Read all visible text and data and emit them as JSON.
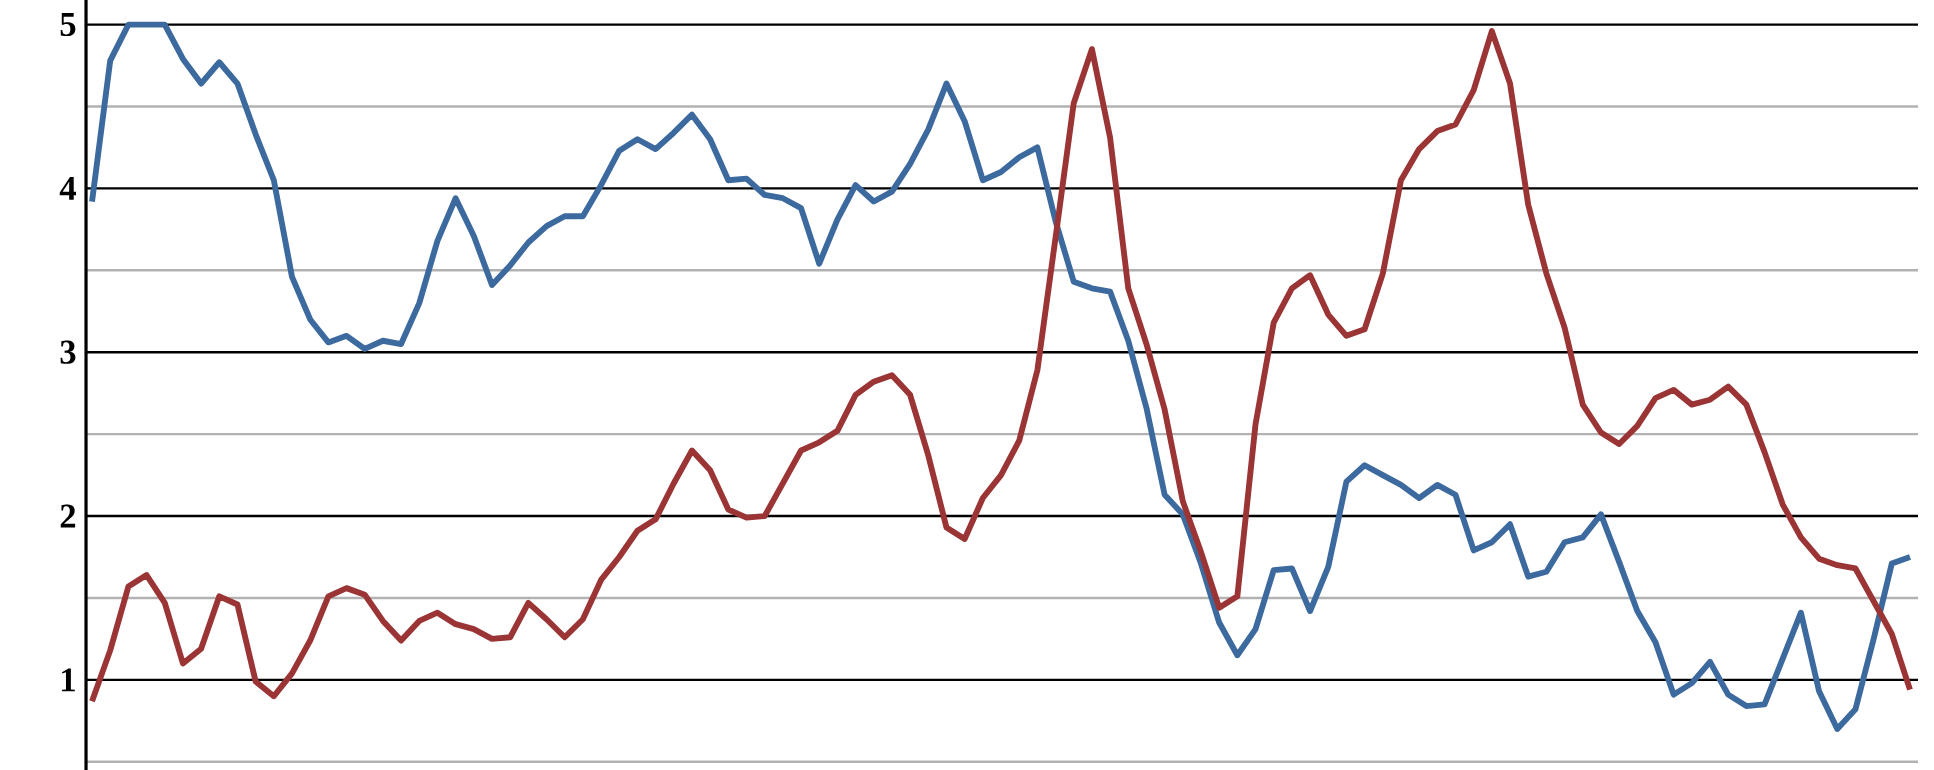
{
  "chart_data": {
    "type": "line",
    "ylim": [
      0.45,
      5.15
    ],
    "categories": [
      null,
      null,
      null,
      null,
      null,
      null,
      null,
      null,
      null,
      null,
      null,
      null,
      null,
      null,
      null,
      null,
      null,
      null,
      null,
      null,
      null,
      null,
      null,
      null,
      null,
      null,
      null,
      null,
      null,
      null,
      null,
      null,
      null,
      null,
      null,
      null,
      null,
      null,
      null,
      null,
      null,
      null,
      null,
      null,
      null,
      null,
      null,
      null,
      null,
      null,
      null,
      null,
      null,
      null,
      null,
      null,
      null,
      null,
      null,
      null,
      null,
      null,
      null,
      null,
      null,
      null,
      null,
      null,
      null,
      null,
      null,
      null,
      null,
      null,
      null,
      null,
      null,
      null,
      null,
      null,
      null,
      null,
      null,
      null,
      null,
      null,
      null,
      null,
      null,
      null,
      null,
      null,
      null,
      null,
      null,
      null,
      null,
      null,
      null,
      null,
      null
    ],
    "yticks": [
      {
        "value": 0.5,
        "label": null
      },
      1,
      {
        "value": 1.5,
        "label": null
      },
      2,
      {
        "value": 2.5,
        "label": null
      },
      3,
      {
        "value": 3.5,
        "label": null
      },
      4,
      {
        "value": 4.5,
        "label": null
      },
      5
    ],
    "tick_labels": "y",
    "grid": "y",
    "marker": "none",
    "line_style": "solid",
    "series": [
      {
        "color": "#3d6a9e",
        "values": [
          3.92,
          4.78,
          5.0,
          5.0,
          5.0,
          4.79,
          4.64,
          4.77,
          4.64,
          4.33,
          4.05,
          3.46,
          3.2,
          3.06,
          3.1,
          3.02,
          3.07,
          3.05,
          3.3,
          3.68,
          3.94,
          3.71,
          3.41,
          3.53,
          3.67,
          3.77,
          3.83,
          3.83,
          4.02,
          4.23,
          4.3,
          4.24,
          4.34,
          4.45,
          4.3,
          4.05,
          4.06,
          3.96,
          3.94,
          3.88,
          3.54,
          3.81,
          4.02,
          3.92,
          3.98,
          4.15,
          4.36,
          4.64,
          4.41,
          4.05,
          4.1,
          4.19,
          4.25,
          3.8,
          3.43,
          3.39,
          3.37,
          3.07,
          2.66,
          2.13,
          2.01,
          1.71,
          1.35,
          1.15,
          1.31,
          1.67,
          1.68,
          1.42,
          1.69,
          2.21,
          2.31,
          2.25,
          2.19,
          2.11,
          2.19,
          2.13,
          1.79,
          1.84,
          1.95,
          1.63,
          1.66,
          1.84,
          1.87,
          2.01,
          1.72,
          1.42,
          1.23,
          0.91,
          0.98,
          1.11,
          0.91,
          0.84,
          0.85,
          1.13,
          1.41,
          0.93,
          0.7,
          0.82,
          1.25,
          1.71,
          1.75
        ]
      },
      {
        "color": "#9b3535",
        "values": [
          0.87,
          1.18,
          1.57,
          1.64,
          1.47,
          1.1,
          1.19,
          1.51,
          1.46,
          0.99,
          0.9,
          1.04,
          1.24,
          1.51,
          1.56,
          1.52,
          1.36,
          1.24,
          1.36,
          1.41,
          1.34,
          1.31,
          1.25,
          1.26,
          1.47,
          1.37,
          1.26,
          1.37,
          1.61,
          1.75,
          1.91,
          1.98,
          2.2,
          2.4,
          2.28,
          2.04,
          1.99,
          2.0,
          2.2,
          2.4,
          2.45,
          2.52,
          2.74,
          2.82,
          2.86,
          2.74,
          2.37,
          1.93,
          1.86,
          2.11,
          2.25,
          2.46,
          2.89,
          3.7,
          4.52,
          4.85,
          4.31,
          3.39,
          3.05,
          2.65,
          2.09,
          1.78,
          1.44,
          1.51,
          2.56,
          3.18,
          3.39,
          3.47,
          3.23,
          3.1,
          3.14,
          3.48,
          4.05,
          4.24,
          4.35,
          4.39,
          4.6,
          4.96,
          4.64,
          3.9,
          3.48,
          3.15,
          2.68,
          2.51,
          2.44,
          2.55,
          2.72,
          2.77,
          2.68,
          2.71,
          2.79,
          2.68,
          2.39,
          2.07,
          1.87,
          1.74,
          1.7,
          1.68,
          1.48,
          1.28,
          0.94
        ]
      }
    ]
  }
}
